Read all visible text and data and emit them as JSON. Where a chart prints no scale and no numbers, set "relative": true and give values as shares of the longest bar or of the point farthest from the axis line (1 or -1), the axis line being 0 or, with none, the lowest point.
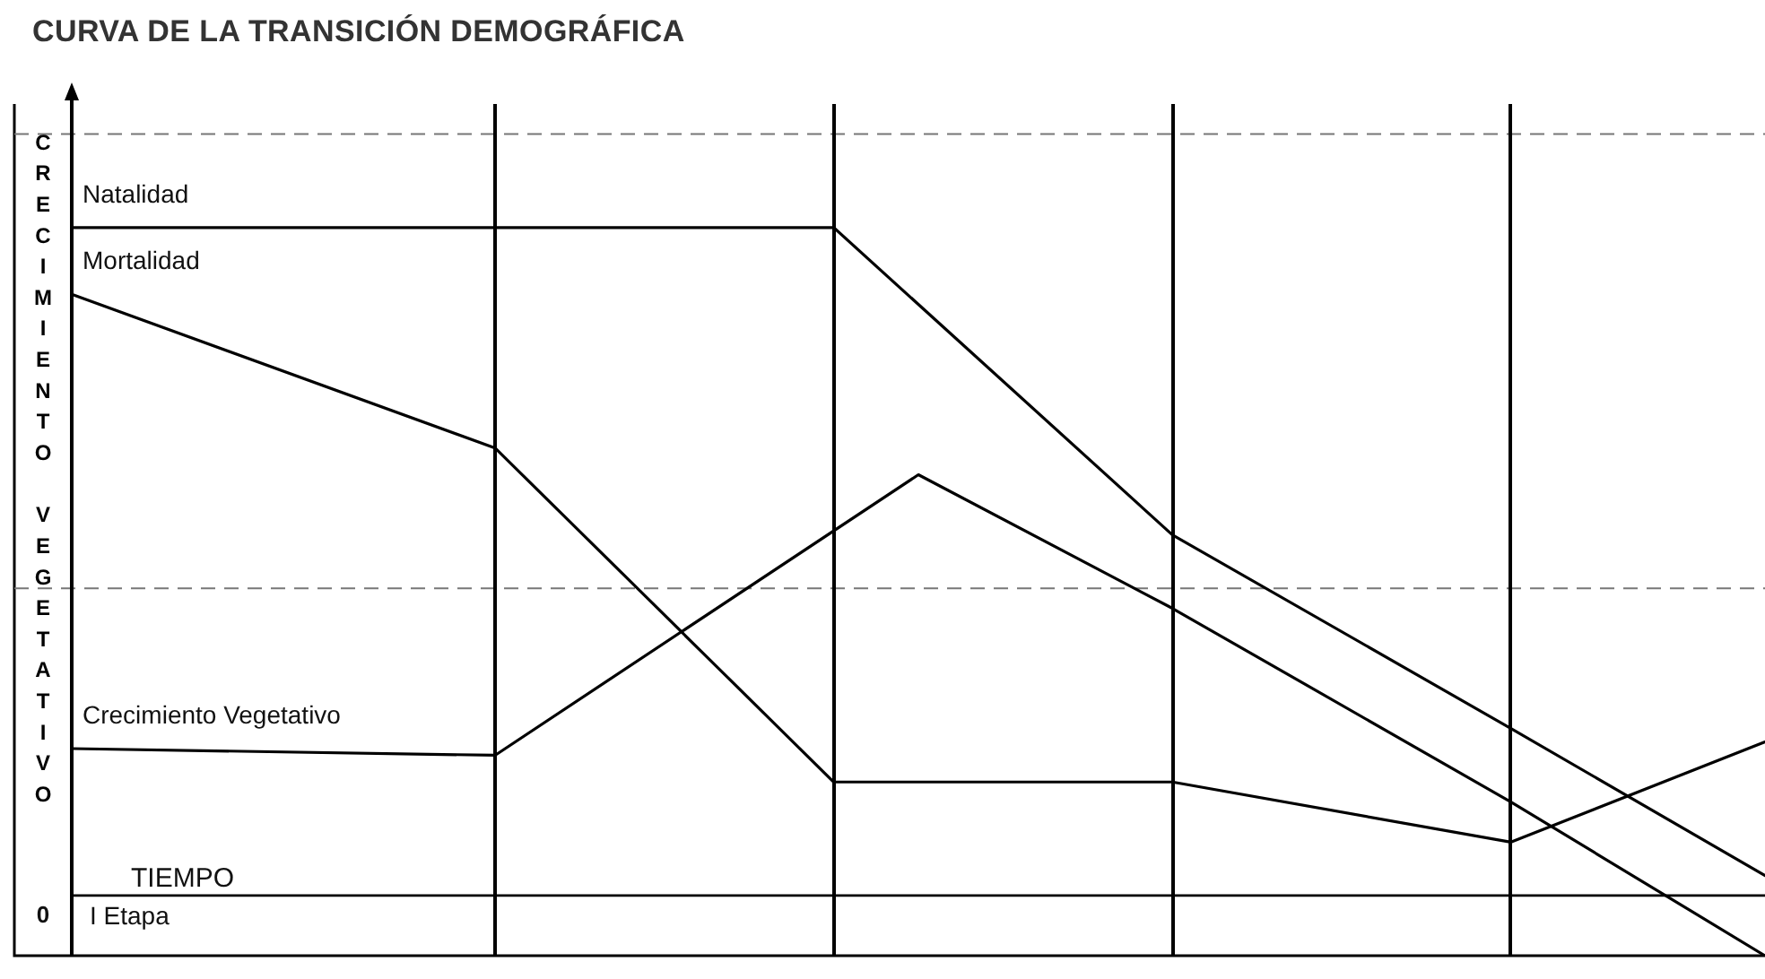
{
  "chart_data": {
    "type": "line",
    "title": "CURVA DE LA TRANSICIÓN DEMOGRÁFICA",
    "ylabel": "CRECIMIENTO VEGETATIVO",
    "relative": true,
    "legend": false,
    "marker": "none",
    "line_style": "solid",
    "categories": [
      null,
      null,
      null,
      null,
      null,
      null,
      null,
      null,
      null,
      null,
      null,
      null,
      null,
      null,
      null,
      null,
      null,
      null,
      null,
      null,
      null
    ],
    "series": [
      {
        "name": "Natalidad",
        "color": "#000000",
        "values": [
          1,
          null,
          null,
          null,
          null,
          null,
          null,
          null,
          null,
          1,
          null,
          null,
          null,
          0.54,
          null,
          null,
          null,
          0.25,
          null,
          null,
          0.03
        ]
      },
      {
        "name": "Mortalidad",
        "color": "#000000",
        "values": [
          0.9,
          null,
          null,
          null,
          null,
          0.67,
          null,
          null,
          null,
          0.17,
          null,
          null,
          null,
          0.17,
          null,
          null,
          null,
          0.08,
          null,
          null,
          0.23
        ]
      },
      {
        "name": "Crecimiento Vegetativo",
        "color": "#000000",
        "values": [
          0.22,
          null,
          null,
          null,
          null,
          0.21,
          null,
          null,
          null,
          null,
          0.63,
          null,
          null,
          0.43,
          null,
          null,
          null,
          0.14,
          null,
          null,
          -0.09
        ]
      }
    ],
    "ref_lines": [
      {
        "axis": "y",
        "value": 1.14,
        "color": "#777777",
        "line_style": "dashed"
      },
      {
        "axis": "y",
        "value": 0.46,
        "color": "#777777",
        "line_style": "dashed"
      }
    ],
    "annotations": [
      "TIEMPO",
      "I Etapa",
      "0"
    ]
  }
}
